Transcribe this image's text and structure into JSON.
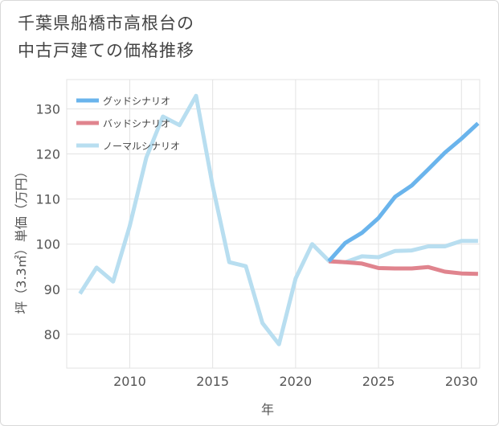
{
  "chart_data": {
    "type": "line",
    "title_lines": [
      "千葉県船橋市高根台の",
      "中古戸建ての価格推移"
    ],
    "xlabel": "年",
    "ylabel": "坪（3.3㎡）単価（万円）",
    "xlim": [
      2006.2,
      2031.1
    ],
    "ylim": [
      72.5,
      136.5
    ],
    "xticks": [
      2010,
      2015,
      2020,
      2025,
      2030
    ],
    "yticks": [
      80,
      90,
      100,
      110,
      120,
      130
    ],
    "grid": true,
    "legend_position": "top-left",
    "series": [
      {
        "name": "グッドシナリオ",
        "color": "#6ab4ec",
        "x": [
          2022,
          2023,
          2024,
          2025,
          2026,
          2027,
          2028,
          2029,
          2030,
          2031
        ],
        "values": [
          96.2,
          100.3,
          102.5,
          105.8,
          110.5,
          113.0,
          116.6,
          120.3,
          123.4,
          126.8
        ]
      },
      {
        "name": "バッドシナリオ",
        "color": "#e0848e",
        "x": [
          2022,
          2023,
          2024,
          2025,
          2026,
          2027,
          2028,
          2029,
          2030,
          2031
        ],
        "values": [
          96.2,
          96.0,
          95.7,
          94.7,
          94.6,
          94.6,
          94.9,
          93.9,
          93.5,
          93.4
        ]
      },
      {
        "name": "ノーマルシナリオ",
        "color": "#b8def0",
        "x": [
          2007,
          2008,
          2009,
          2010,
          2011,
          2012,
          2013,
          2014,
          2015,
          2016,
          2017,
          2018,
          2019,
          2020,
          2021,
          2022,
          2023,
          2024,
          2025,
          2026,
          2027,
          2028,
          2029,
          2030,
          2031
        ],
        "values": [
          89.0,
          94.8,
          91.7,
          104.0,
          119.2,
          128.3,
          126.4,
          132.9,
          112.9,
          96.0,
          95.1,
          82.5,
          77.8,
          92.4,
          100.0,
          96.3,
          96.0,
          97.3,
          97.1,
          98.5,
          98.6,
          99.5,
          99.5,
          100.7,
          100.7
        ]
      }
    ]
  }
}
